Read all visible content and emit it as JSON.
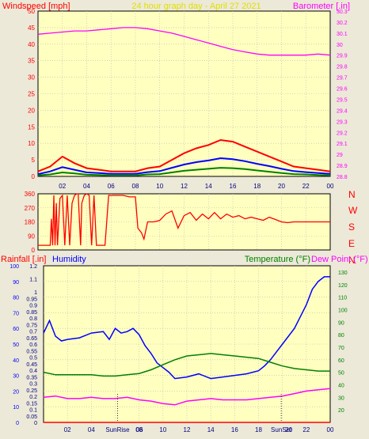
{
  "page": {
    "title": "24 hour graph day - April 27 2021",
    "bg": "#ece9d8",
    "plot_bg": "#ffffc0",
    "grid": "#b8b8b8"
  },
  "chart_data": [
    {
      "type": "line",
      "panel": "wind-barometer",
      "title": "24 hour graph day - April 27 2021",
      "ylabel_left": "Windspeed [mph]",
      "ylabel_right": "Barometer [.in]",
      "ylim_left": [
        0,
        50
      ],
      "yticks_left": [
        "0",
        "5",
        "10",
        "15",
        "20",
        "25",
        "30",
        "35",
        "40",
        "45",
        "50"
      ],
      "ylim_right": [
        28.8,
        30.3
      ],
      "yticks_right": [
        "28.8",
        "28.9",
        "29",
        "29.1",
        "29.2",
        "29.3",
        "29.4",
        "29.5",
        "29.6",
        "29.7",
        "29.8",
        "29.9",
        "30",
        "30.1",
        "30.2",
        "30.3"
      ],
      "xlim": [
        0,
        24
      ],
      "xticks": [
        "02",
        "04",
        "06",
        "08",
        "10",
        "12",
        "14",
        "16",
        "18",
        "20",
        "22",
        "00"
      ],
      "grid": true,
      "series": [
        {
          "axis": "right",
          "color": "#ff00ff",
          "x": [
            0,
            1,
            2,
            3,
            4,
            5,
            6,
            7,
            8,
            9,
            10,
            11,
            12,
            13,
            14,
            15,
            16,
            17,
            18,
            19,
            20,
            21,
            22,
            23,
            24
          ],
          "values": [
            30.09,
            30.1,
            30.11,
            30.12,
            30.12,
            30.13,
            30.14,
            30.15,
            30.15,
            30.14,
            30.12,
            30.1,
            30.07,
            30.04,
            30.01,
            29.98,
            29.95,
            29.93,
            29.91,
            29.9,
            29.9,
            29.9,
            29.9,
            29.91,
            29.9
          ]
        },
        {
          "axis": "left",
          "color": "#ff0000",
          "x": [
            0,
            1,
            2,
            3,
            4,
            5,
            6,
            7,
            8,
            9,
            10,
            11,
            12,
            13,
            14,
            15,
            16,
            17,
            18,
            19,
            20,
            21,
            22,
            23,
            24
          ],
          "values": [
            1.5,
            3,
            6,
            4,
            2.5,
            2,
            1.5,
            1.5,
            1.5,
            2.5,
            3,
            5,
            7,
            8.5,
            9.5,
            11,
            10.5,
            9,
            7.5,
            6,
            4.5,
            3,
            2.5,
            2,
            1.5
          ]
        },
        {
          "axis": "left",
          "color": "#0000ff",
          "x": [
            0,
            1,
            2,
            3,
            4,
            5,
            6,
            7,
            8,
            9,
            10,
            11,
            12,
            13,
            14,
            15,
            16,
            17,
            18,
            19,
            20,
            21,
            22,
            23,
            24
          ],
          "values": [
            0.7,
            1.5,
            2.8,
            2,
            1.2,
            1,
            0.8,
            0.8,
            0.8,
            1.3,
            1.6,
            2.6,
            3.6,
            4.3,
            4.8,
            5.5,
            5.2,
            4.6,
            3.8,
            3.1,
            2.3,
            1.6,
            1.3,
            1,
            0.8
          ]
        },
        {
          "axis": "left",
          "color": "#008000",
          "x": [
            0,
            1,
            2,
            3,
            4,
            5,
            6,
            7,
            8,
            9,
            10,
            11,
            12,
            13,
            14,
            15,
            16,
            17,
            18,
            19,
            20,
            21,
            22,
            23,
            24
          ],
          "values": [
            0.3,
            0.6,
            1.2,
            0.9,
            0.5,
            0.4,
            0.3,
            0.3,
            0.3,
            0.6,
            0.7,
            1.2,
            1.7,
            2,
            2.3,
            2.6,
            2.5,
            2.2,
            1.8,
            1.4,
            1,
            0.7,
            0.6,
            0.4,
            0.3
          ]
        }
      ]
    },
    {
      "type": "line",
      "panel": "wind-direction",
      "ylim": [
        0,
        360
      ],
      "yticks": [
        "0",
        "90",
        "180",
        "270",
        "360"
      ],
      "ylabel_right": [
        "N",
        "W",
        "S",
        "E",
        "N"
      ],
      "xlim": [
        0,
        24
      ],
      "grid": true,
      "series": [
        {
          "color": "#ff0000",
          "x": [
            0,
            1,
            1.1,
            1.2,
            1.3,
            1.4,
            1.5,
            1.6,
            1.8,
            2,
            2.2,
            2.4,
            2.6,
            2.8,
            3,
            3.2,
            3.3,
            3.5,
            3.6,
            3.8,
            4,
            4.2,
            4.4,
            4.6,
            4.8,
            5,
            5.2,
            5.5,
            5.8,
            6,
            6.5,
            7,
            7.5,
            8,
            8.2,
            8.5,
            8.7,
            9,
            9.5,
            9.8,
            10,
            10.5,
            11,
            11.5,
            12,
            12.5,
            13,
            13.5,
            14,
            14.5,
            15,
            15.5,
            16,
            16.5,
            17,
            17.5,
            18,
            18.5,
            19,
            19.5,
            20,
            20.5,
            21,
            22,
            23,
            24
          ],
          "values": [
            30,
            30,
            200,
            30,
            350,
            30,
            300,
            30,
            330,
            350,
            30,
            350,
            30,
            300,
            350,
            360,
            360,
            30,
            300,
            350,
            360,
            350,
            30,
            350,
            30,
            30,
            30,
            30,
            350,
            350,
            350,
            350,
            340,
            340,
            140,
            110,
            70,
            180,
            180,
            185,
            190,
            230,
            250,
            140,
            220,
            240,
            190,
            230,
            200,
            240,
            200,
            230,
            210,
            220,
            200,
            210,
            200,
            190,
            210,
            195,
            180,
            175,
            180,
            180,
            180,
            180
          ]
        }
      ]
    },
    {
      "type": "line",
      "panel": "rain-humidity-temperature",
      "ylabel_left_1": "Rainfall [.in]",
      "ylabel_left_2": "Humidity",
      "ylabel_right_1": "Temperature (°F)",
      "ylabel_right_2": "Dew Point (°F)",
      "ylim_rain": [
        0,
        1.2
      ],
      "yticks_rain": [
        "0",
        "0.05",
        "0.1",
        "0.15",
        "0.2",
        "0.25",
        "0.3",
        "0.35",
        "0.4",
        "0.45",
        "0.5",
        "0.55",
        "0.6",
        "0.65",
        "0.7",
        "0.75",
        "0.8",
        "0.85",
        "0.9",
        "0.95",
        "1",
        "1.1",
        "1.2"
      ],
      "ylim_humidity": [
        0,
        100
      ],
      "yticks_humidity": [
        "0",
        "10",
        "20",
        "30",
        "40",
        "50",
        "60",
        "70",
        "80",
        "90",
        "100"
      ],
      "ylim_temp": [
        10,
        135
      ],
      "yticks_temp": [
        "20",
        "30",
        "40",
        "50",
        "60",
        "70",
        "80",
        "90",
        "100",
        "110",
        "120",
        "130"
      ],
      "xlim": [
        0,
        24
      ],
      "xticks": [
        "02",
        "04",
        "SunRise",
        "06",
        "08",
        "10",
        "12",
        "14",
        "16",
        "18",
        "SunSet",
        "20",
        "22",
        "00"
      ],
      "grid": true,
      "series": [
        {
          "name": "Humidity",
          "color": "#0000ff",
          "x": [
            0,
            0.5,
            1,
            1.5,
            2,
            3,
            4,
            5,
            5.5,
            6,
            6.5,
            7,
            7.5,
            8,
            8.5,
            9,
            9.5,
            10,
            10.5,
            11,
            12,
            13,
            14,
            15,
            16,
            17,
            18,
            18.5,
            19,
            19.5,
            20,
            21,
            22,
            22.5,
            23,
            23.5,
            24
          ],
          "values": [
            57,
            65,
            55,
            52,
            53,
            54,
            57,
            58,
            53,
            60,
            57,
            58,
            60,
            56,
            49,
            44,
            38,
            35,
            32,
            28,
            29,
            31,
            28,
            29,
            30,
            31,
            33,
            36,
            40,
            45,
            50,
            60,
            75,
            85,
            90,
            93,
            93
          ]
        },
        {
          "name": "Temperature",
          "color": "#008000",
          "x": [
            0,
            1,
            2,
            3,
            4,
            5,
            6,
            7,
            8,
            9,
            10,
            11,
            12,
            13,
            14,
            15,
            16,
            17,
            18,
            19,
            20,
            21,
            22,
            23,
            24
          ],
          "values": [
            50,
            48,
            48,
            48,
            48,
            47,
            47,
            48,
            49,
            52,
            56,
            60,
            63,
            64,
            65,
            64,
            63,
            62,
            61,
            58,
            55,
            53,
            52,
            51,
            51
          ]
        },
        {
          "name": "Dew Point",
          "color": "#ff00ff",
          "x": [
            0,
            1,
            2,
            3,
            4,
            5,
            6,
            7,
            8,
            9,
            10,
            11,
            12,
            13,
            14,
            15,
            16,
            17,
            18,
            19,
            20,
            21,
            22,
            23,
            24
          ],
          "values": [
            30,
            31,
            29,
            29,
            30,
            29,
            29,
            30,
            28,
            27,
            25,
            24,
            27,
            28,
            29,
            28,
            28,
            28,
            29,
            30,
            31,
            33,
            35,
            36,
            37
          ]
        },
        {
          "name": "Rainfall",
          "color": "#ff0000",
          "x": [
            0,
            24
          ],
          "values": [
            0,
            0
          ]
        }
      ]
    }
  ]
}
